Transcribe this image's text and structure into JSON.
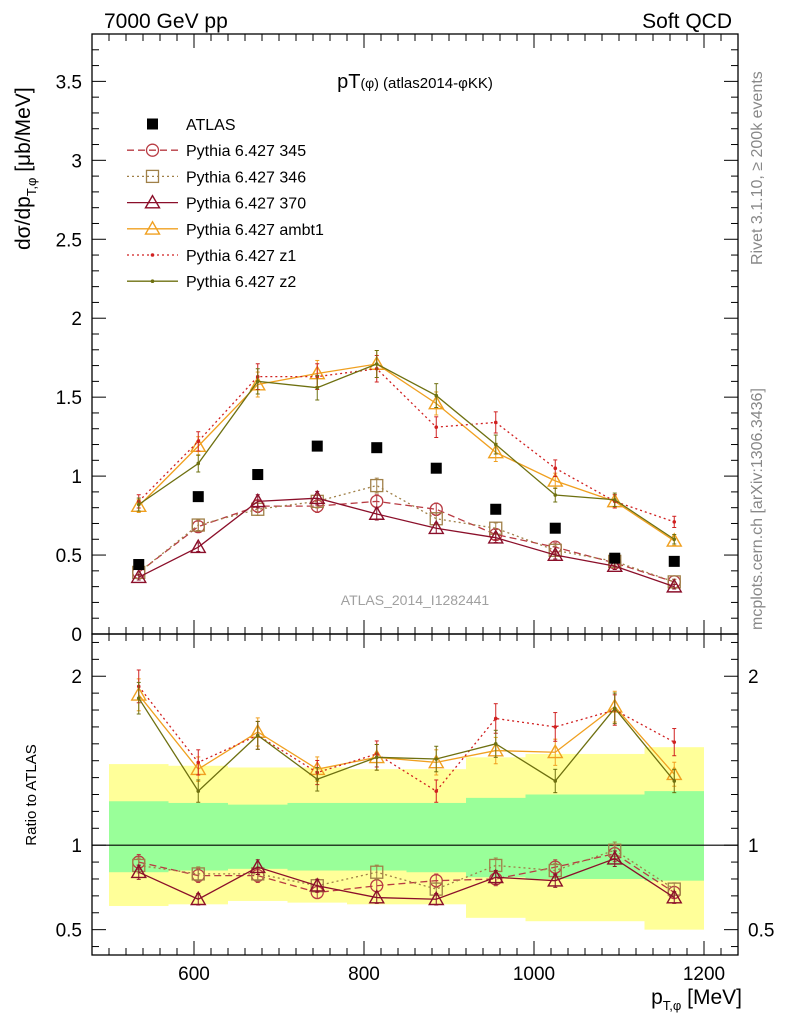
{
  "header": {
    "left": "7000 GeV pp",
    "right": "Soft QCD"
  },
  "side_labels": {
    "rivet": "Rivet 3.1.10, ≥ 200k events",
    "mcplots": "mcplots.cern.ch [arXiv:1306.3436]"
  },
  "watermark": "ATLAS_2014_I1282441",
  "chart_data": {
    "type": "scatter",
    "title": "pT(φ) (atlas2014-φKK)",
    "xlabel": "p_T,φ [MeV]",
    "ylabel": "dσ/dp_T,φ [μb/MeV]",
    "ratio_ylabel": "Ratio to ATLAS",
    "xlim": [
      480,
      1240
    ],
    "ylim": [
      0,
      3.8
    ],
    "ratio_ylim": [
      0.35,
      2.25
    ],
    "x_ticks": [
      600,
      800,
      1000,
      1200
    ],
    "y_ticks": [
      0,
      0.5,
      1,
      1.5,
      2,
      2.5,
      3,
      3.5
    ],
    "y_tick_labels": [
      "0",
      "0.5",
      "1",
      "1.5",
      "2",
      "2.5",
      "3",
      "3.5"
    ],
    "ratio_ticks": [
      0.5,
      1,
      2
    ],
    "ratio_tick_labels": [
      "0.5",
      "1",
      "2"
    ],
    "legend_position": "top-left",
    "x": [
      535,
      605,
      675,
      745,
      815,
      885,
      955,
      1025,
      1095,
      1165
    ],
    "data": {
      "name": "ATLAS",
      "color": "#000000",
      "values": [
        0.44,
        0.87,
        1.01,
        1.19,
        1.18,
        1.05,
        0.79,
        0.67,
        0.48,
        0.46
      ]
    },
    "ratio_bands": {
      "yellow": [
        [
          0.64,
          1.48
        ],
        [
          0.65,
          1.47
        ],
        [
          0.67,
          1.46
        ],
        [
          0.66,
          1.46
        ],
        [
          0.65,
          1.45
        ],
        [
          0.65,
          1.45
        ],
        [
          0.57,
          1.52
        ],
        [
          0.55,
          1.54
        ],
        [
          0.55,
          1.54
        ],
        [
          0.5,
          1.58
        ]
      ],
      "green": [
        [
          0.84,
          1.26
        ],
        [
          0.85,
          1.25
        ],
        [
          0.86,
          1.24
        ],
        [
          0.85,
          1.25
        ],
        [
          0.85,
          1.25
        ],
        [
          0.84,
          1.25
        ],
        [
          0.81,
          1.28
        ],
        [
          0.8,
          1.3
        ],
        [
          0.8,
          1.3
        ],
        [
          0.79,
          1.32
        ]
      ]
    },
    "series": [
      {
        "name": "Pythia 6.427 345",
        "color": "#b83b43",
        "dash": "7,4",
        "marker": "circle",
        "values": [
          0.39,
          0.68,
          0.81,
          0.81,
          0.84,
          0.79,
          0.63,
          0.55,
          0.45,
          0.33
        ],
        "ratio": [
          0.9,
          0.82,
          0.82,
          0.72,
          0.76,
          0.79,
          0.8,
          0.87,
          0.95,
          0.72
        ]
      },
      {
        "name": "Pythia 6.427 346",
        "color": "#a08048",
        "dash": "2,3",
        "marker": "square",
        "values": [
          0.39,
          0.69,
          0.79,
          0.84,
          0.94,
          0.73,
          0.67,
          0.53,
          0.46,
          0.33
        ],
        "ratio": [
          0.88,
          0.83,
          0.83,
          0.76,
          0.84,
          0.74,
          0.88,
          0.85,
          0.97,
          0.74
        ]
      },
      {
        "name": "Pythia 6.427 370",
        "color": "#8b0f2a",
        "dash": "",
        "marker": "triangle",
        "values": [
          0.36,
          0.55,
          0.84,
          0.86,
          0.76,
          0.67,
          0.61,
          0.5,
          0.43,
          0.3
        ],
        "ratio": [
          0.84,
          0.68,
          0.87,
          0.76,
          0.69,
          0.68,
          0.81,
          0.79,
          0.92,
          0.69
        ]
      },
      {
        "name": "Pythia 6.427 ambt1",
        "color": "#f0a020",
        "dash": "",
        "marker": "triangle",
        "values": [
          0.81,
          1.19,
          1.58,
          1.65,
          1.71,
          1.46,
          1.15,
          0.97,
          0.84,
          0.59
        ],
        "ratio": [
          1.89,
          1.45,
          1.67,
          1.45,
          1.52,
          1.49,
          1.56,
          1.55,
          1.82,
          1.42
        ]
      },
      {
        "name": "Pythia 6.427 z1",
        "color": "#d02020",
        "dash": "2,3",
        "marker": "dot",
        "values": [
          0.84,
          1.22,
          1.63,
          1.63,
          1.68,
          1.31,
          1.34,
          1.05,
          0.84,
          0.71
        ],
        "ratio": [
          1.94,
          1.49,
          1.65,
          1.43,
          1.54,
          1.32,
          1.75,
          1.7,
          1.8,
          1.61
        ]
      },
      {
        "name": "Pythia 6.427 z2",
        "color": "#6e7010",
        "dash": "",
        "marker": "dot",
        "values": [
          0.82,
          1.08,
          1.6,
          1.56,
          1.71,
          1.51,
          1.2,
          0.88,
          0.85,
          0.6
        ],
        "ratio": [
          1.87,
          1.32,
          1.65,
          1.39,
          1.52,
          1.51,
          1.6,
          1.38,
          1.81,
          1.38
        ]
      }
    ]
  }
}
